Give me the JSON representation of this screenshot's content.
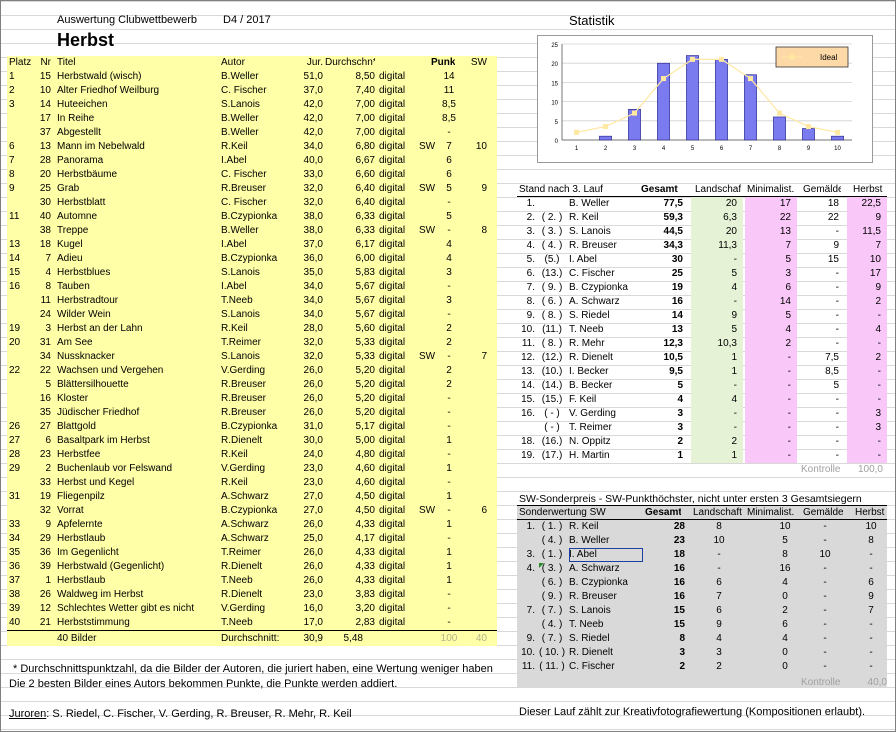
{
  "header": {
    "subtitle": "Auswertung Clubwettbewerb",
    "code": "D4 / 2017",
    "title": "Herbst",
    "stat_title": "Statistik"
  },
  "left_table": {
    "columns": [
      "Platz",
      "Nr",
      "Titel",
      "Autor",
      "Jur.",
      "Durchschn*",
      "",
      "",
      "Punkte",
      "SW"
    ],
    "rows": [
      [
        "1",
        "15",
        "Herbstwald (wisch)",
        "B.Weller",
        "51,0",
        "8,50",
        "digital",
        "",
        "14",
        ""
      ],
      [
        "2",
        "10",
        "Alter Friedhof Weilburg",
        "C. Fischer",
        "37,0",
        "7,40",
        "digital",
        "",
        "11",
        ""
      ],
      [
        "3",
        "14",
        "Huteeichen",
        "S.Lanois",
        "42,0",
        "7,00",
        "digital",
        "",
        "8,5",
        ""
      ],
      [
        "",
        "17",
        "In Reihe",
        "B.Weller",
        "42,0",
        "7,00",
        "digital",
        "",
        "8,5",
        ""
      ],
      [
        "",
        "37",
        "Abgestellt",
        "B.Weller",
        "42,0",
        "7,00",
        "digital",
        "",
        "-",
        ""
      ],
      [
        "6",
        "13",
        "Mann im Nebelwald",
        "R.Keil",
        "34,0",
        "6,80",
        "digital",
        "SW",
        "7",
        "10"
      ],
      [
        "7",
        "28",
        "Panorama",
        "I.Abel",
        "40,0",
        "6,67",
        "digital",
        "",
        "6",
        ""
      ],
      [
        "8",
        "20",
        "Herbstbäume",
        "C. Fischer",
        "33,0",
        "6,60",
        "digital",
        "",
        "6",
        ""
      ],
      [
        "9",
        "25",
        "Grab",
        "R.Breuser",
        "32,0",
        "6,40",
        "digital",
        "SW",
        "5",
        "9"
      ],
      [
        "",
        "30",
        "Herbstblatt",
        "C. Fischer",
        "32,0",
        "6,40",
        "digital",
        "",
        "-",
        ""
      ],
      [
        "11",
        "40",
        "Automne",
        "B.Czypionka",
        "38,0",
        "6,33",
        "digital",
        "",
        "5",
        ""
      ],
      [
        "",
        "38",
        "Treppe",
        "B.Weller",
        "38,0",
        "6,33",
        "digital",
        "SW",
        "-",
        "8"
      ],
      [
        "13",
        "18",
        "Kugel",
        "I.Abel",
        "37,0",
        "6,17",
        "digital",
        "",
        "4",
        ""
      ],
      [
        "14",
        "7",
        "Adieu",
        "B.Czypionka",
        "36,0",
        "6,00",
        "digital",
        "",
        "4",
        ""
      ],
      [
        "15",
        "4",
        "Herbstblues",
        "S.Lanois",
        "35,0",
        "5,83",
        "digital",
        "",
        "3",
        ""
      ],
      [
        "16",
        "8",
        "Tauben",
        "I.Abel",
        "34,0",
        "5,67",
        "digital",
        "",
        "-",
        ""
      ],
      [
        "",
        "11",
        "Herbstradtour",
        "T.Neeb",
        "34,0",
        "5,67",
        "digital",
        "",
        "3",
        ""
      ],
      [
        "",
        "24",
        "Wilder Wein",
        "S.Lanois",
        "34,0",
        "5,67",
        "digital",
        "",
        "-",
        ""
      ],
      [
        "19",
        "3",
        "Herbst an der Lahn",
        "R.Keil",
        "28,0",
        "5,60",
        "digital",
        "",
        "2",
        ""
      ],
      [
        "20",
        "31",
        "Am See",
        "T.Reimer",
        "32,0",
        "5,33",
        "digital",
        "",
        "2",
        ""
      ],
      [
        "",
        "34",
        "Nussknacker",
        "S.Lanois",
        "32,0",
        "5,33",
        "digital",
        "SW",
        "-",
        "7"
      ],
      [
        "22",
        "22",
        "Wachsen und Vergehen",
        "V.Gerding",
        "26,0",
        "5,20",
        "digital",
        "",
        "2",
        ""
      ],
      [
        "",
        "5",
        "Blättersilhouette",
        "R.Breuser",
        "26,0",
        "5,20",
        "digital",
        "",
        "2",
        ""
      ],
      [
        "",
        "16",
        "Kloster",
        "R.Breuser",
        "26,0",
        "5,20",
        "digital",
        "",
        "-",
        ""
      ],
      [
        "",
        "35",
        "Jüdischer Friedhof",
        "R.Breuser",
        "26,0",
        "5,20",
        "digital",
        "",
        "-",
        ""
      ],
      [
        "26",
        "27",
        "Blattgold",
        "B.Czypionka",
        "31,0",
        "5,17",
        "digital",
        "",
        "-",
        ""
      ],
      [
        "27",
        "6",
        "Basaltpark im Herbst",
        "R.Dienelt",
        "30,0",
        "5,00",
        "digital",
        "",
        "1",
        ""
      ],
      [
        "28",
        "23",
        "Herbstfee",
        "R.Keil",
        "24,0",
        "4,80",
        "digital",
        "",
        "-",
        ""
      ],
      [
        "29",
        "2",
        "Buchenlaub vor Felswand",
        "V.Gerding",
        "23,0",
        "4,60",
        "digital",
        "",
        "1",
        ""
      ],
      [
        "",
        "33",
        "Herbst und Kegel",
        "R.Keil",
        "23,0",
        "4,60",
        "digital",
        "",
        "-",
        ""
      ],
      [
        "31",
        "19",
        "Fliegenpilz",
        "A.Schwarz",
        "27,0",
        "4,50",
        "digital",
        "",
        "1",
        ""
      ],
      [
        "",
        "32",
        "Vorrat",
        "B.Czypionka",
        "27,0",
        "4,50",
        "digital",
        "SW",
        "-",
        "6"
      ],
      [
        "33",
        "9",
        "Apfelernte",
        "A.Schwarz",
        "26,0",
        "4,33",
        "digital",
        "",
        "1",
        ""
      ],
      [
        "34",
        "29",
        "Herbstlaub",
        "A.Schwarz",
        "25,0",
        "4,17",
        "digital",
        "",
        "-",
        ""
      ],
      [
        "35",
        "36",
        "Im Gegenlicht",
        "T.Reimer",
        "26,0",
        "4,33",
        "digital",
        "",
        "1",
        ""
      ],
      [
        "36",
        "39",
        "Herbstwald (Gegenlicht)",
        "R.Dienelt",
        "26,0",
        "4,33",
        "digital",
        "",
        "1",
        ""
      ],
      [
        "37",
        "1",
        "Herbstlaub",
        "T.Neeb",
        "26,0",
        "4,33",
        "digital",
        "",
        "1",
        ""
      ],
      [
        "38",
        "26",
        "Waldweg im Herbst",
        "R.Dienelt",
        "23,0",
        "3,83",
        "digital",
        "",
        "-",
        ""
      ],
      [
        "39",
        "12",
        "Schlechtes Wetter gibt es nicht",
        "V.Gerding",
        "16,0",
        "3,20",
        "digital",
        "",
        "-",
        ""
      ],
      [
        "40",
        "21",
        "Herbststimmung",
        "T.Neeb",
        "17,0",
        "2,83",
        "digital",
        "",
        "-",
        ""
      ]
    ],
    "footer": {
      "count": "40 Bilder",
      "avg_label": "Durchschnitt:",
      "jur": "30,9",
      "avg": "5,48",
      "points": "100",
      "sw": "40"
    }
  },
  "notes": {
    "footnote_1": "* Durchschnittspunktzahl, da die Bilder der Autoren, die juriert haben, eine Wertung weniger haben",
    "footnote_2": "Die 2 besten Bilder eines Autors bekommen Punkte, die Punkte werden addiert.",
    "juroren_label": "Juroren",
    "juroren": ": S. Riedel, C. Fischer, V. Gerding, R. Breuser, R. Mehr, R. Keil",
    "right_note": "Dieser Lauf zählt zur Kreativfotografiewertung (Kompositionen erlaubt)."
  },
  "chart_data": {
    "type": "bar",
    "categories": [
      "1",
      "2",
      "3",
      "4",
      "5",
      "6",
      "7",
      "8",
      "9",
      "10"
    ],
    "series": [
      {
        "name": "",
        "kind": "bar",
        "values": [
          0,
          1,
          8,
          20,
          22,
          21,
          17,
          6,
          3,
          1
        ]
      },
      {
        "name": "Ideal",
        "kind": "line",
        "values": [
          2,
          3.5,
          7,
          16,
          21,
          21,
          16,
          7,
          3.5,
          2
        ]
      }
    ],
    "ylim": [
      0,
      25
    ],
    "yticks": [
      "0",
      "5",
      "10",
      "15",
      "20",
      "25"
    ],
    "legend": "top-right",
    "bar_color": "#7b7bf0",
    "line_color": "#ffe8a0"
  },
  "standings": {
    "title": "Stand nach 3. Lauf",
    "columns": [
      "Gesamt",
      "Landschaft",
      "Minimalist.",
      "Gemälde",
      "Herbst"
    ],
    "rows": [
      [
        "1.",
        "",
        "B. Weller",
        "77,5",
        "20",
        "17",
        "18",
        "22,5"
      ],
      [
        "2.",
        "( 2. )",
        "R. Keil",
        "59,3",
        "6,3",
        "22",
        "22",
        "9"
      ],
      [
        "3.",
        "( 3. )",
        "S. Lanois",
        "44,5",
        "20",
        "13",
        "-",
        "11,5"
      ],
      [
        "4.",
        "( 4. )",
        "R. Breuser",
        "34,3",
        "11,3",
        "7",
        "9",
        "7"
      ],
      [
        "5.",
        "(5.)",
        "I. Abel",
        "30",
        "-",
        "5",
        "15",
        "10"
      ],
      [
        "6.",
        "(13.)",
        "C. Fischer",
        "25",
        "5",
        "3",
        "-",
        "17"
      ],
      [
        "7.",
        "( 9. )",
        "B. Czypionka",
        "19",
        "4",
        "6",
        "-",
        "9"
      ],
      [
        "8.",
        "( 6. )",
        "A. Schwarz",
        "16",
        "-",
        "14",
        "-",
        "2"
      ],
      [
        "9.",
        "( 8. )",
        "S. Riedel",
        "14",
        "9",
        "5",
        "-",
        "-"
      ],
      [
        "10.",
        "(11.)",
        "T. Neeb",
        "13",
        "5",
        "4",
        "-",
        "4"
      ],
      [
        "11.",
        "( 8. )",
        "R. Mehr",
        "12,3",
        "10,3",
        "2",
        "-",
        "-"
      ],
      [
        "12.",
        "(12.)",
        "R. Dienelt",
        "10,5",
        "1",
        "-",
        "7,5",
        "2"
      ],
      [
        "13.",
        "(10.)",
        "I. Becker",
        "9,5",
        "1",
        "-",
        "8,5",
        "-"
      ],
      [
        "14.",
        "(14.)",
        "B. Becker",
        "5",
        "-",
        "-",
        "5",
        "-"
      ],
      [
        "15.",
        "(15.)",
        "F. Keil",
        "4",
        "4",
        "-",
        "-",
        "-"
      ],
      [
        "16.",
        "( - )",
        "V. Gerding",
        "3",
        "-",
        "-",
        "-",
        "3"
      ],
      [
        "",
        "( - )",
        "T. Reimer",
        "3",
        "-",
        "-",
        "-",
        "3"
      ],
      [
        "18.",
        "(16.)",
        "N. Oppitz",
        "2",
        "2",
        "-",
        "-",
        "-"
      ],
      [
        "19.",
        "(17.)",
        "H. Martin",
        "1",
        "1",
        "-",
        "-",
        "-"
      ]
    ],
    "kontrolle_label": "Kontrolle",
    "kontrolle_value": "100,0"
  },
  "sw": {
    "title": "SW-Sonderpreis - SW-Punkthöchster, nicht unter ersten 3 Gesamtsiegern",
    "header": [
      "Sonderwertung SW",
      "Gesamt",
      "Landschaft",
      "Minimalist.",
      "Gemälde",
      "Herbst"
    ],
    "rows": [
      [
        "1.",
        "( 1. )",
        "R. Keil",
        "28",
        "8",
        "10",
        "-",
        "10"
      ],
      [
        "",
        "( 4. )",
        "B. Weller",
        "23",
        "10",
        "5",
        "-",
        "8"
      ],
      [
        "3.",
        "( 1. )",
        "I. Abel",
        "18",
        "-",
        "8",
        "10",
        "-"
      ],
      [
        "4.",
        "( 3. )",
        "A. Schwarz",
        "16",
        "-",
        "16",
        "-",
        "-"
      ],
      [
        "",
        "( 6. )",
        "B. Czypionka",
        "16",
        "6",
        "4",
        "-",
        "6"
      ],
      [
        "",
        "( 9. )",
        "R. Breuser",
        "16",
        "7",
        "0",
        "-",
        "9"
      ],
      [
        "7.",
        "( 7. )",
        "S. Lanois",
        "15",
        "6",
        "2",
        "-",
        "7"
      ],
      [
        "",
        "( 4. )",
        "T. Neeb",
        "15",
        "9",
        "6",
        "-",
        "-"
      ],
      [
        "9.",
        "( 7. )",
        "S. Riedel",
        "8",
        "4",
        "4",
        "-",
        "-"
      ],
      [
        "10.",
        "( 10. )",
        "R. Dienelt",
        "3",
        "3",
        "0",
        "-",
        "-"
      ],
      [
        "11.",
        "( 11. )",
        "C. Fischer",
        "2",
        "2",
        "0",
        "-",
        "-"
      ]
    ],
    "kontrolle_label": "Kontrolle",
    "kontrolle_value": "40,0"
  }
}
